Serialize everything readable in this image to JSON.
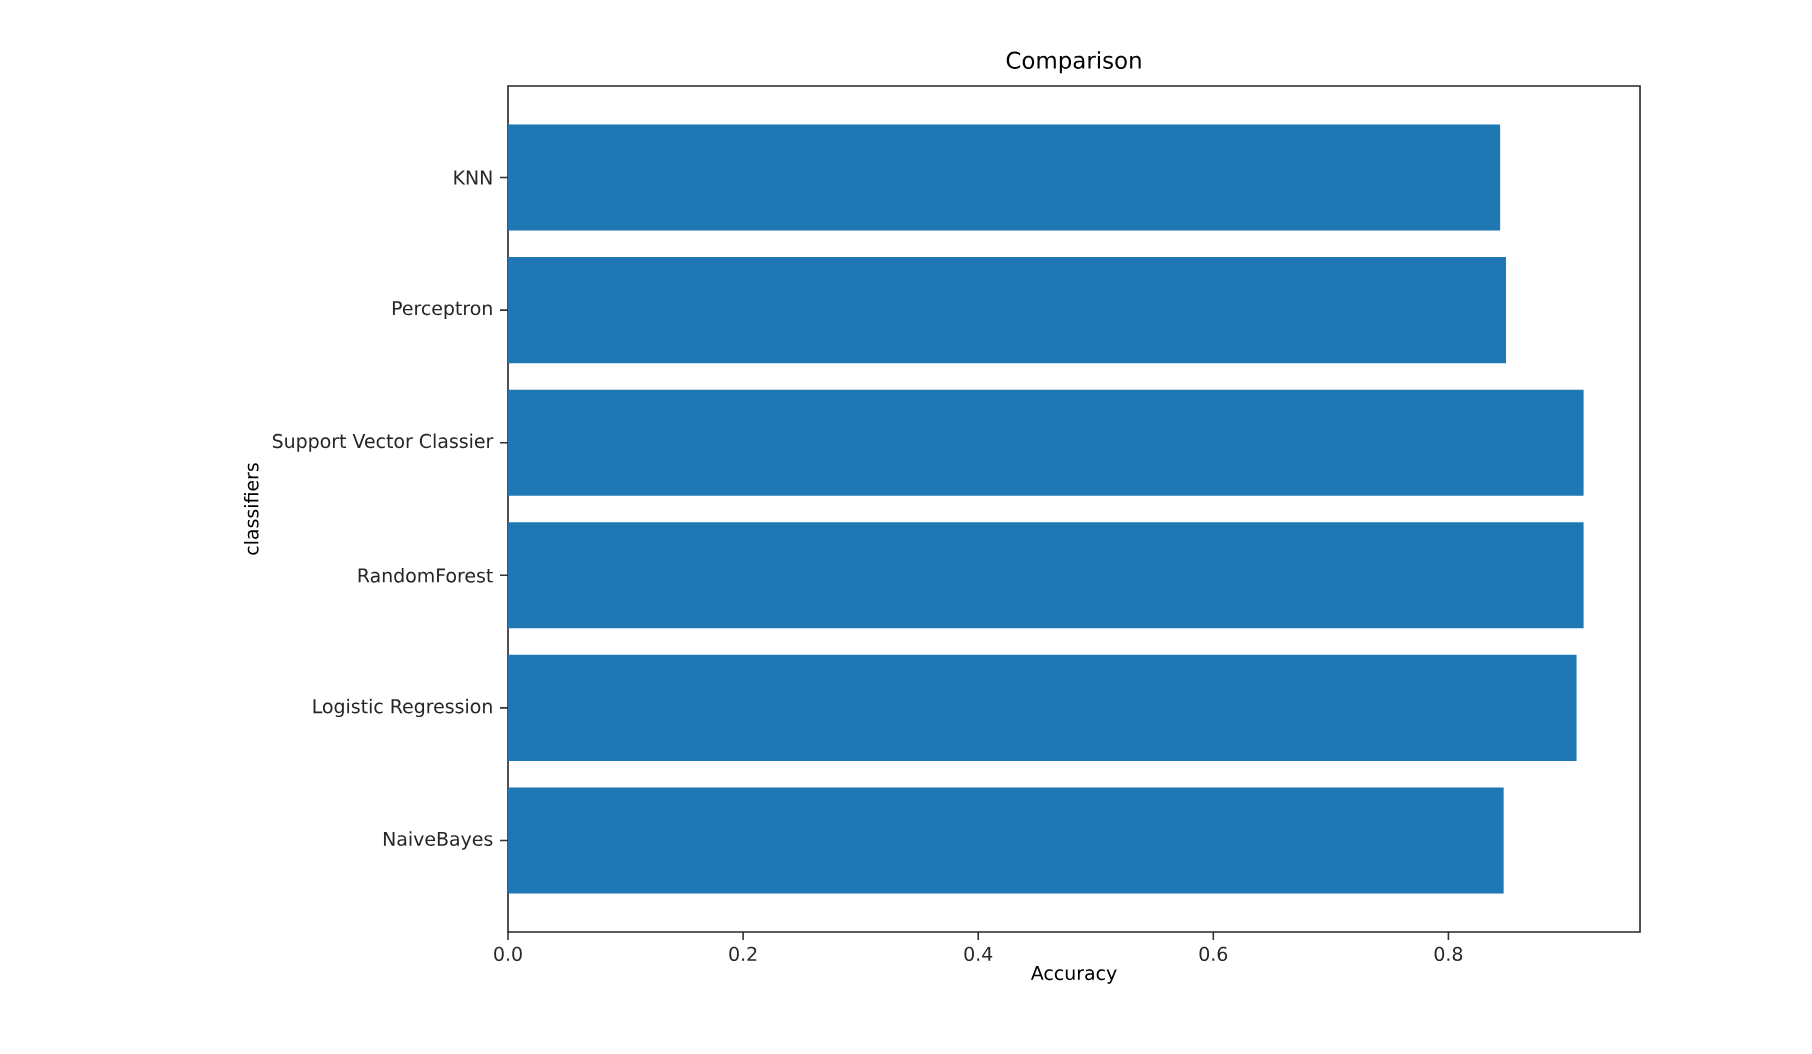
{
  "chart_data": {
    "type": "bar",
    "orientation": "horizontal",
    "title": "Comparison",
    "xlabel": "Accuracy",
    "ylabel": "classifiers",
    "categories": [
      "KNN",
      "Perceptron",
      "Support Vector Classier",
      "RandomForest",
      "Logistic Regression",
      "NaiveBayes"
    ],
    "values": [
      0.844,
      0.849,
      0.915,
      0.915,
      0.909,
      0.847
    ],
    "color": "#1f77b4",
    "xlim": [
      0,
      0.963
    ],
    "xticks": [
      {
        "value": 0,
        "label": "0.0"
      },
      0.2,
      0.4,
      0.6,
      0.8
    ],
    "grid": false
  }
}
